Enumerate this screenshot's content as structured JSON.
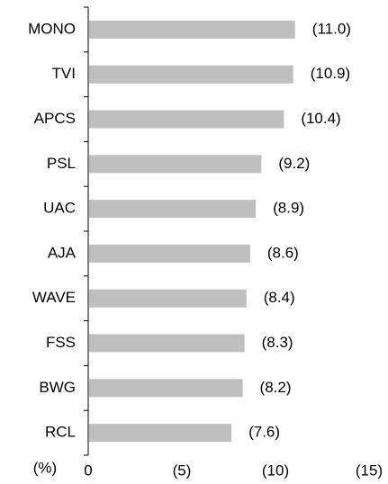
{
  "chart_data": {
    "type": "bar",
    "orientation": "horizontal",
    "x_label": "(%)",
    "categories": [
      "MONO",
      "TVI",
      "APCS",
      "PSL",
      "UAC",
      "AJA",
      "WAVE",
      "FSS",
      "BWG",
      "RCL"
    ],
    "values": [
      -11.0,
      -10.9,
      -10.4,
      -9.2,
      -8.9,
      -8.6,
      -8.4,
      -8.3,
      -8.2,
      -7.6
    ],
    "value_labels": [
      "(11.0)",
      "(10.9)",
      "(10.4)",
      "(9.2)",
      "(8.9)",
      "(8.6)",
      "(8.4)",
      "(8.3)",
      "(8.2)",
      "(7.6)"
    ],
    "color": "#bfbfbf",
    "xlim": [
      0,
      -15
    ],
    "xticks": [
      0,
      {
        "value": -5,
        "label": "(5)"
      },
      {
        "value": -10,
        "label": "(10)"
      },
      {
        "value": -15,
        "label": "(15)"
      }
    ],
    "grid": false
  }
}
